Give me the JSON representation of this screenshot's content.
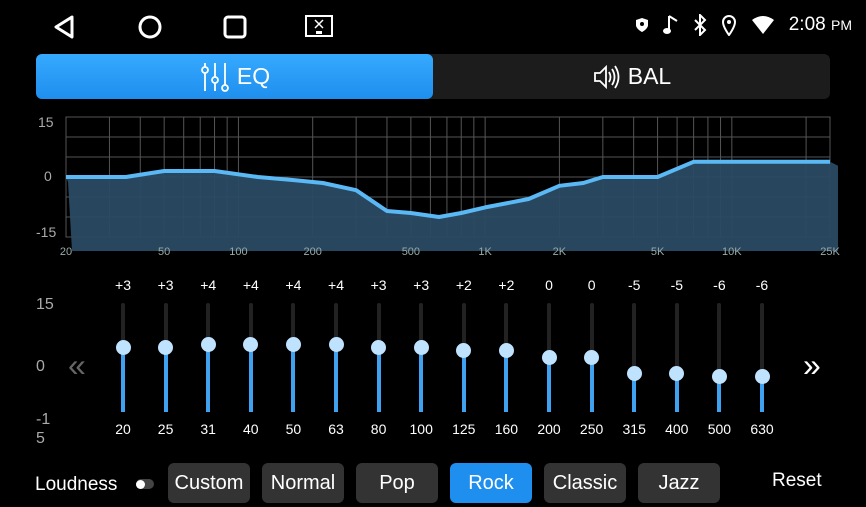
{
  "status_bar": {
    "time": "2:08",
    "ampm": "PM",
    "icons": [
      "shield-icon",
      "music-note-icon",
      "bluetooth-icon",
      "location-icon",
      "wifi-icon"
    ]
  },
  "nav_bar": {
    "icons": [
      "back-icon",
      "home-icon",
      "recents-icon",
      "screen-off-icon"
    ]
  },
  "tabs": [
    {
      "label": "EQ",
      "icon": "equalizer-sliders-icon",
      "active": true
    },
    {
      "label": "BAL",
      "icon": "speaker-icon",
      "active": false
    }
  ],
  "chart_data": {
    "type": "area",
    "ylim": [
      -15,
      15
    ],
    "y_ticks": [
      "15",
      "0",
      "-15"
    ],
    "x_scale": "log",
    "x_ticks": [
      "20",
      "50",
      "100",
      "200",
      "500",
      "1K",
      "2K",
      "5K",
      "10K",
      "25K"
    ],
    "x_tick_values": [
      20,
      50,
      100,
      200,
      500,
      1000,
      2000,
      5000,
      10000,
      25000
    ],
    "grid": true,
    "points": [
      [
        20,
        0
      ],
      [
        35,
        0
      ],
      [
        50,
        1.5
      ],
      [
        80,
        1.5
      ],
      [
        120,
        0
      ],
      [
        170,
        -0.8
      ],
      [
        220,
        -1.5
      ],
      [
        300,
        -3.3
      ],
      [
        400,
        -8.5
      ],
      [
        500,
        -9
      ],
      [
        650,
        -10
      ],
      [
        800,
        -9
      ],
      [
        1000,
        -7.6
      ],
      [
        1500,
        -5.5
      ],
      [
        2000,
        -2.2
      ],
      [
        2500,
        -1.5
      ],
      [
        3000,
        0
      ],
      [
        5000,
        0
      ],
      [
        7000,
        3.8
      ],
      [
        25000,
        3.8
      ]
    ],
    "color": "#5ab8f5"
  },
  "sliders": {
    "scale_labels": [
      "15",
      "0",
      "-1\n5"
    ],
    "bands": [
      {
        "freq": "20",
        "label": "+3",
        "value": 3
      },
      {
        "freq": "25",
        "label": "+3",
        "value": 3
      },
      {
        "freq": "31",
        "label": "+4",
        "value": 4
      },
      {
        "freq": "40",
        "label": "+4",
        "value": 4
      },
      {
        "freq": "50",
        "label": "+4",
        "value": 4
      },
      {
        "freq": "63",
        "label": "+4",
        "value": 4
      },
      {
        "freq": "80",
        "label": "+3",
        "value": 3
      },
      {
        "freq": "100",
        "label": "+3",
        "value": 3
      },
      {
        "freq": "125",
        "label": "+2",
        "value": 2
      },
      {
        "freq": "160",
        "label": "+2",
        "value": 2
      },
      {
        "freq": "200",
        "label": "0",
        "value": 0
      },
      {
        "freq": "250",
        "label": "0",
        "value": 0
      },
      {
        "freq": "315",
        "label": "-5",
        "value": -5
      },
      {
        "freq": "400",
        "label": "-5",
        "value": -5
      },
      {
        "freq": "500",
        "label": "-6",
        "value": -6
      },
      {
        "freq": "630",
        "label": "-6",
        "value": -6
      }
    ],
    "prev": "«",
    "next": "»"
  },
  "bottom": {
    "loudness_label": "Loudness",
    "loudness_on": false,
    "presets": [
      {
        "label": "Custom"
      },
      {
        "label": "Normal"
      },
      {
        "label": "Pop"
      },
      {
        "label": "Rock",
        "active": true
      },
      {
        "label": "Classic"
      },
      {
        "label": "Jazz"
      }
    ],
    "reset_label": "Reset"
  },
  "colors": {
    "accent": "#1e8fee",
    "curve": "#5ab8f5",
    "fill": "#2a4a63"
  }
}
